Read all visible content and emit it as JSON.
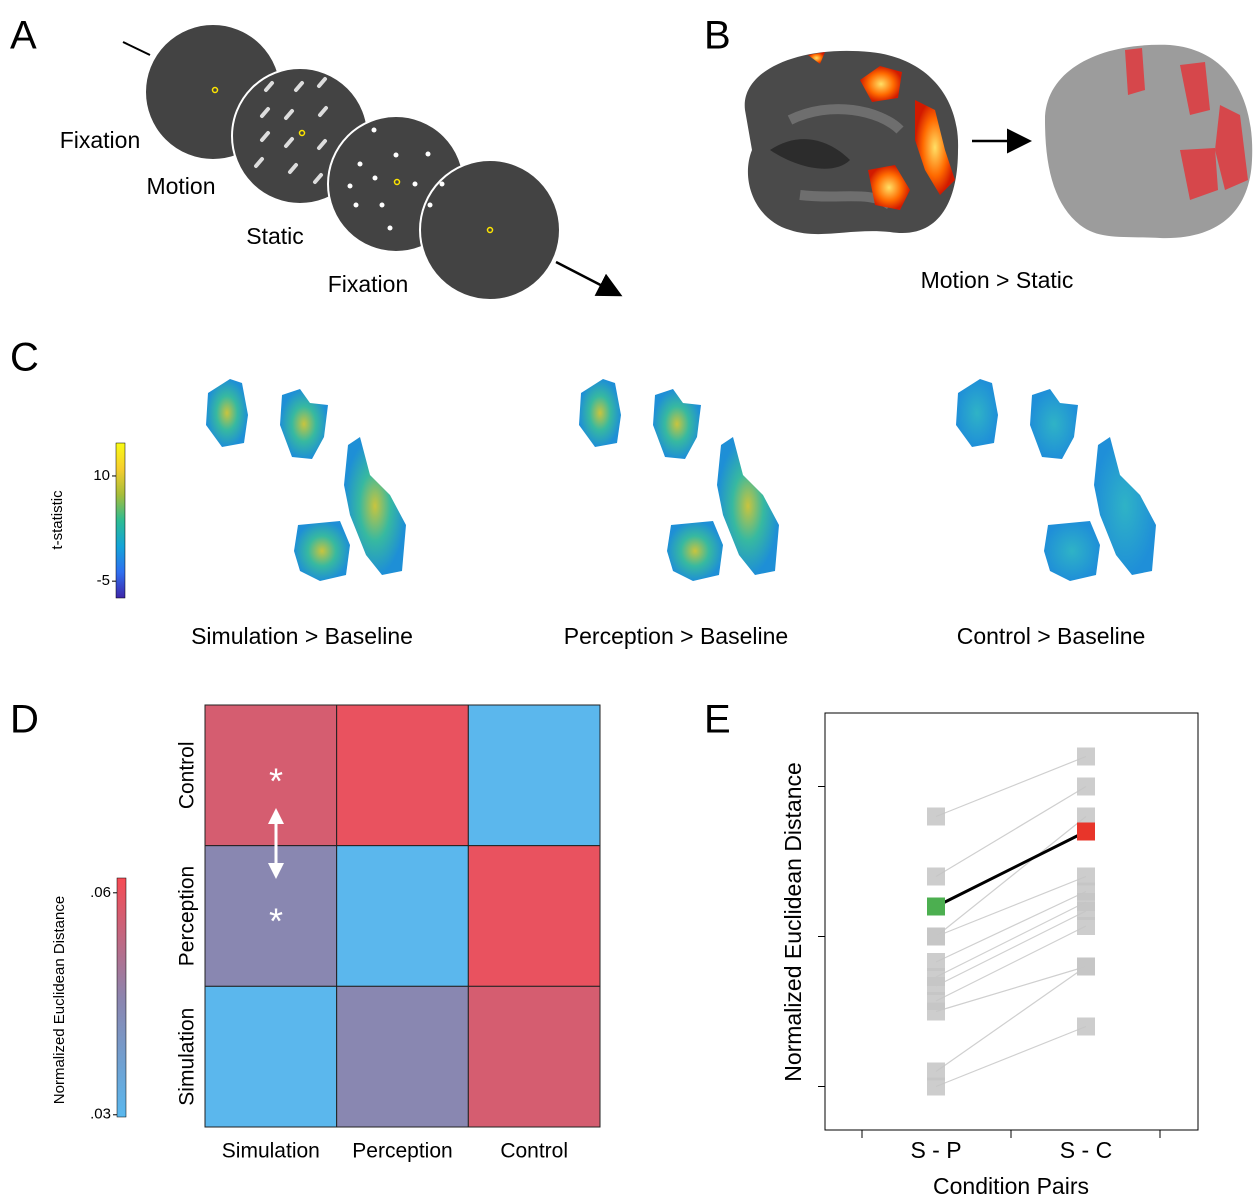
{
  "panel_a": {
    "label": "A",
    "stages": [
      "Fixation",
      "Motion",
      "Static",
      "Fixation"
    ]
  },
  "panel_b": {
    "label": "B",
    "caption": "Motion > Static"
  },
  "panel_c": {
    "label": "C",
    "colorbar": {
      "title": "t-statistic",
      "clim": [
        -7.4,
        14.7
      ],
      "ticks": [
        10,
        -5
      ],
      "colormap": [
        "#3e26a8",
        "#2f6ff0",
        "#14a4d8",
        "#2dbc93",
        "#a6bd3a",
        "#f6ce2e",
        "#f9fb15"
      ]
    },
    "maps": [
      "Simulation > Baseline",
      "Perception > Baseline",
      "Control > Baseline"
    ]
  },
  "panel_d": {
    "label": "D",
    "colorbar": {
      "title": "Normalized Euclidean Distance",
      "clim": [
        0.0297,
        0.062
      ],
      "ticks": [
        {
          "value": 0.06,
          "label": ".06"
        },
        {
          "value": 0.03,
          "label": ".03"
        }
      ],
      "colormap": [
        "#5ab8ee",
        "#8c84ae",
        "#f64b54"
      ]
    },
    "rows": [
      "Control",
      "Perception",
      "Simulation"
    ],
    "columns": [
      "Simulation",
      "Perception",
      "Control"
    ],
    "values": [
      [
        0.057,
        0.06,
        0.03
      ],
      [
        0.045,
        0.03,
        0.06
      ],
      [
        0.03,
        0.045,
        0.057
      ]
    ],
    "annotations": [
      "*",
      "*"
    ]
  },
  "panel_e": {
    "label": "E",
    "chart_data": {
      "type": "line",
      "y_label": "Normalized Euclidean Distance",
      "x_label": "Condition Pairs",
      "categories": [
        "S - P",
        "S - C"
      ],
      "ylim": [
        0.71,
        3.49
      ],
      "yticks": [
        1,
        2,
        3
      ],
      "marker_color": "#c4c4c4",
      "line_color": "#cfcfcf",
      "series": [
        {
          "values": [
            2.8,
            3.2
          ]
        },
        {
          "values": [
            2.4,
            3.0
          ]
        },
        {
          "values": [
            2.0,
            2.8
          ]
        },
        {
          "values": [
            2.0,
            2.4
          ]
        },
        {
          "values": [
            1.83,
            2.3
          ]
        },
        {
          "values": [
            1.73,
            2.23
          ]
        },
        {
          "values": [
            1.67,
            2.17
          ]
        },
        {
          "values": [
            1.57,
            2.07
          ]
        },
        {
          "values": [
            1.5,
            1.8
          ]
        },
        {
          "values": [
            1.1,
            1.8
          ]
        },
        {
          "values": [
            1.0,
            1.4
          ]
        },
        {
          "values": [
            2.2,
            2.7
          ],
          "color": "#000000",
          "marker_colors": [
            "#4caf50",
            "#e8352a"
          ]
        }
      ]
    }
  }
}
